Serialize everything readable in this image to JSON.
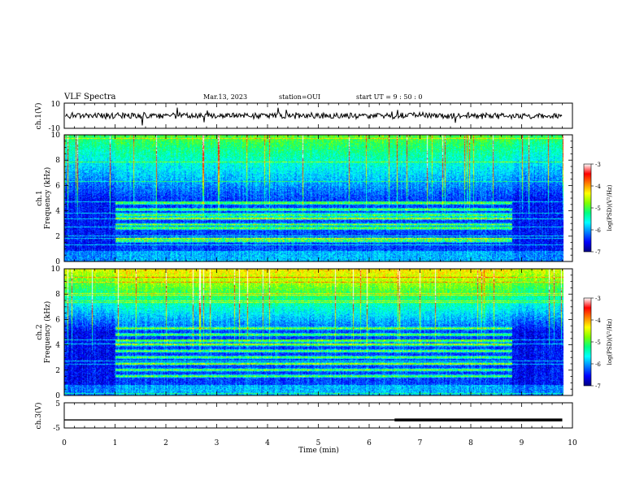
{
  "header": {
    "title": "VLF Spectra",
    "date": "Mar.13, 2023",
    "station": "station=OUI",
    "start": "start  UT =   9 : 50 : 0"
  },
  "chart_data": [
    {
      "panel": "ch1-waveform",
      "type": "line",
      "ylabel": "ch.1(V)",
      "yticks": [
        "10",
        "-10"
      ],
      "ylim": [
        -10,
        10
      ],
      "color": "#000000"
    },
    {
      "panel": "ch1-spectrogram",
      "type": "heatmap",
      "ylabel_line1": "ch.1",
      "ylabel_line2": "Frequency (kHz)",
      "yticks": [
        0,
        2,
        4,
        6,
        8,
        10
      ],
      "ylim": [
        0,
        10
      ],
      "colorbar": {
        "label": "log(PSD)(V²/Hz)",
        "ticks": [
          -3,
          -4,
          -5,
          -6,
          -7
        ],
        "range": [
          -7,
          -3
        ]
      },
      "bands_khz": [
        1.6,
        1.75,
        2.6,
        2.9,
        3.4,
        3.65,
        4.1,
        4.6
      ],
      "active_interval_min": [
        1.0,
        8.8
      ]
    },
    {
      "panel": "ch2-spectrogram",
      "type": "heatmap",
      "ylabel_line1": "ch.2",
      "ylabel_line2": "Frequency (kHz)",
      "yticks": [
        0,
        2,
        4,
        6,
        8,
        10
      ],
      "ylim": [
        0,
        10
      ],
      "colorbar": {
        "label": "log(PSD)(V²/Hz)",
        "ticks": [
          -3,
          -4,
          -5,
          -6,
          -7
        ],
        "range": [
          -7,
          -3
        ]
      },
      "bands_khz": [
        1.5,
        2.0,
        2.5,
        3.0,
        3.5,
        4.0,
        4.3,
        4.8,
        5.3
      ],
      "active_interval_min": [
        1.0,
        8.8
      ]
    },
    {
      "panel": "ch3-voltage",
      "type": "line",
      "ylabel": "ch.3(V)",
      "yticks": [
        "5",
        "-5"
      ],
      "ylim": [
        -5,
        5
      ],
      "level_v": -1.8,
      "thick_from_min": 6.5,
      "color": "#000000"
    }
  ],
  "xaxis": {
    "label": "Time (min)",
    "ticks": [
      "0",
      "1",
      "2",
      "3",
      "4",
      "5",
      "6",
      "7",
      "8",
      "9",
      "10"
    ],
    "range": [
      0,
      10
    ],
    "data_end_min": 9.8
  },
  "colormap": [
    "#000080",
    "#0000ff",
    "#0080ff",
    "#00ffff",
    "#00ff80",
    "#80ff00",
    "#ffff00",
    "#ff8000",
    "#ff0000",
    "#ffffff"
  ]
}
